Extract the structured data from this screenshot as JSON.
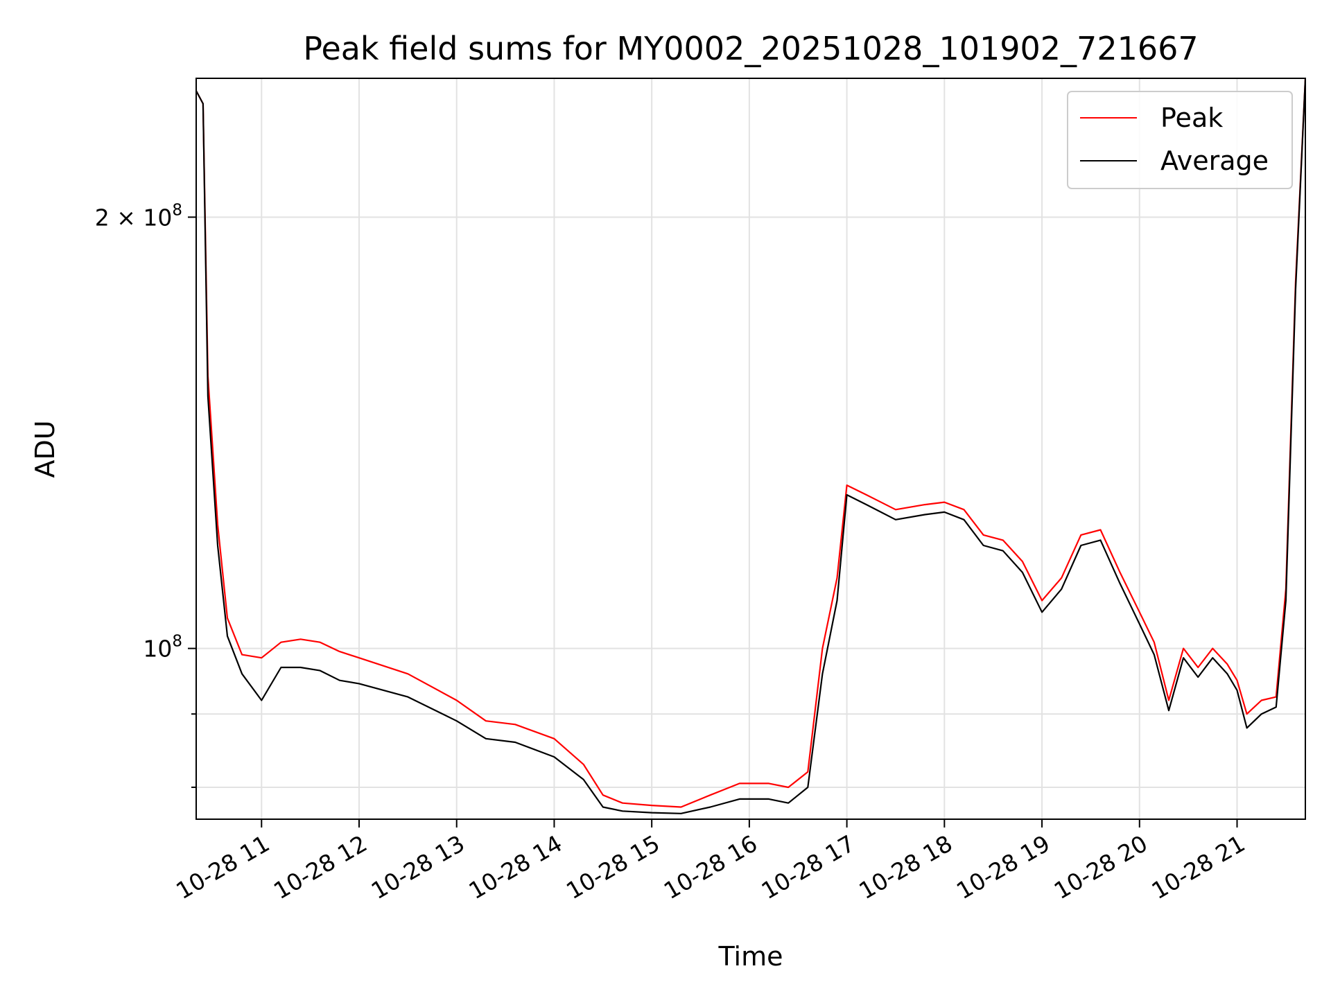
{
  "chart_data": {
    "type": "line",
    "title": "Peak field sums for MY0002_20251028_101902_721667",
    "xlabel": "Time",
    "ylabel": "ADU",
    "y_scale": "log",
    "ylim": [
      76000000,
      250000000
    ],
    "xlim_hours": [
      10.33,
      21.7
    ],
    "x_ticks": [
      "10-28 11",
      "10-28 12",
      "10-28 13",
      "10-28 14",
      "10-28 15",
      "10-28 16",
      "10-28 17",
      "10-28 18",
      "10-28 19",
      "10-28 20",
      "10-28 21"
    ],
    "y_tick_major": [
      {
        "value": 100000000,
        "base": "10",
        "exp": "8"
      },
      {
        "value": 200000000,
        "base": "2 × 10",
        "exp": "8"
      }
    ],
    "y_tick_minor": [
      80000000,
      90000000
    ],
    "grid": true,
    "legend_position": "top-right",
    "series": [
      {
        "name": "Peak",
        "color": "#ff0000",
        "x": [
          10.33,
          10.4,
          10.45,
          10.55,
          10.65,
          10.8,
          11.0,
          11.2,
          11.4,
          11.6,
          11.8,
          12.0,
          12.5,
          13.0,
          13.3,
          13.6,
          14.0,
          14.3,
          14.5,
          14.7,
          15.0,
          15.3,
          15.6,
          15.9,
          16.2,
          16.4,
          16.6,
          16.75,
          16.9,
          17.0,
          17.2,
          17.5,
          17.8,
          18.0,
          18.2,
          18.4,
          18.6,
          18.8,
          19.0,
          19.2,
          19.4,
          19.6,
          19.8,
          20.0,
          20.15,
          20.3,
          20.45,
          20.6,
          20.75,
          20.9,
          21.0,
          21.1,
          21.25,
          21.4,
          21.5,
          21.6,
          21.7
        ],
        "y": [
          245000000,
          240000000,
          155000000,
          122000000,
          105000000,
          99000000,
          98500000,
          101000000,
          101500000,
          101000000,
          99500000,
          98500000,
          96000000,
          92000000,
          89000000,
          88500000,
          86500000,
          83000000,
          79000000,
          78000000,
          77700000,
          77500000,
          79000000,
          80500000,
          80500000,
          80000000,
          82000000,
          100000000,
          112000000,
          130000000,
          128000000,
          125000000,
          126000000,
          126500000,
          125000000,
          120000000,
          119000000,
          115000000,
          108000000,
          112000000,
          120000000,
          121000000,
          113000000,
          106000000,
          101000000,
          92000000,
          100000000,
          97000000,
          100000000,
          97500000,
          95000000,
          90000000,
          92000000,
          92500000,
          110000000,
          180000000,
          250000000
        ]
      },
      {
        "name": "Average",
        "color": "#000000",
        "x": [
          10.33,
          10.4,
          10.45,
          10.55,
          10.65,
          10.8,
          11.0,
          11.2,
          11.4,
          11.6,
          11.8,
          12.0,
          12.5,
          13.0,
          13.3,
          13.6,
          14.0,
          14.3,
          14.5,
          14.7,
          15.0,
          15.3,
          15.6,
          15.9,
          16.2,
          16.4,
          16.6,
          16.75,
          16.9,
          17.0,
          17.2,
          17.5,
          17.8,
          18.0,
          18.2,
          18.4,
          18.6,
          18.8,
          19.0,
          19.2,
          19.4,
          19.6,
          19.8,
          20.0,
          20.15,
          20.3,
          20.45,
          20.6,
          20.75,
          20.9,
          21.0,
          21.1,
          21.25,
          21.4,
          21.5,
          21.6,
          21.7
        ],
        "y": [
          245000000,
          240000000,
          150000000,
          118000000,
          102000000,
          96000000,
          92000000,
          97000000,
          97000000,
          96500000,
          95000000,
          94500000,
          92500000,
          89000000,
          86500000,
          86000000,
          84000000,
          81000000,
          77500000,
          77000000,
          76800000,
          76700000,
          77500000,
          78500000,
          78500000,
          78000000,
          80000000,
          96000000,
          108000000,
          128000000,
          126000000,
          123000000,
          124000000,
          124500000,
          123000000,
          118000000,
          117000000,
          113000000,
          106000000,
          110000000,
          118000000,
          119000000,
          111000000,
          104000000,
          99000000,
          90500000,
          98500000,
          95500000,
          98500000,
          96000000,
          93500000,
          88000000,
          90000000,
          91000000,
          108000000,
          178000000,
          250000000
        ]
      }
    ]
  }
}
